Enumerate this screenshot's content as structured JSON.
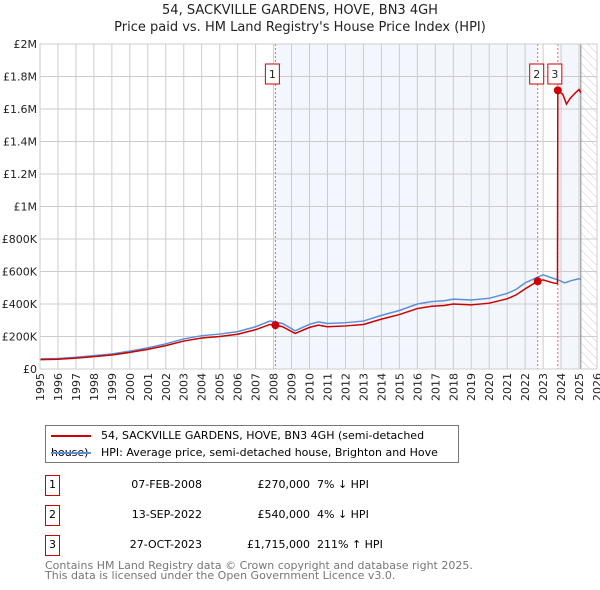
{
  "title": "54, SACKVILLE GARDENS, HOVE, BN3 4GH",
  "subtitle": "Price paid vs. HM Land Registry's House Price Index (HPI)",
  "chart_data": {
    "type": "line",
    "xlim": [
      1995,
      2026
    ],
    "ylim": [
      0,
      2000000
    ],
    "xticks": [
      "1995",
      "1996",
      "1997",
      "1998",
      "1999",
      "2000",
      "2001",
      "2002",
      "2003",
      "2004",
      "2005",
      "2006",
      "2007",
      "2008",
      "2009",
      "2010",
      "2011",
      "2012",
      "2013",
      "2014",
      "2015",
      "2016",
      "2017",
      "2018",
      "2019",
      "2020",
      "2021",
      "2022",
      "2023",
      "2024",
      "2025",
      "2026"
    ],
    "yticks": [
      {
        "v": 0,
        "l": "£0"
      },
      {
        "v": 200000,
        "l": "£200K"
      },
      {
        "v": 400000,
        "l": "£400K"
      },
      {
        "v": 600000,
        "l": "£600K"
      },
      {
        "v": 800000,
        "l": "£800K"
      },
      {
        "v": 1000000,
        "l": "£1M"
      },
      {
        "v": 1200000,
        "l": "£1.2M"
      },
      {
        "v": 1400000,
        "l": "£1.4M"
      },
      {
        "v": 1600000,
        "l": "£1.6M"
      },
      {
        "v": 1800000,
        "l": "£1.8M"
      },
      {
        "v": 2000000,
        "l": "£2M"
      }
    ],
    "series": [
      {
        "name": "54, SACKVILLE GARDENS, HOVE, BN3 4GH (semi-detached house)",
        "color": "#cc0000",
        "points": [
          [
            1995,
            58000
          ],
          [
            1996,
            60000
          ],
          [
            1997,
            67000
          ],
          [
            1998,
            76000
          ],
          [
            1999,
            86000
          ],
          [
            2000,
            102000
          ],
          [
            2001,
            121000
          ],
          [
            2002,
            144000
          ],
          [
            2003,
            172000
          ],
          [
            2004,
            191000
          ],
          [
            2005,
            200000
          ],
          [
            2006,
            214000
          ],
          [
            2007,
            242000
          ],
          [
            2007.8,
            274000
          ],
          [
            2008.1,
            270000
          ],
          [
            2008.5,
            260000
          ],
          [
            2009.2,
            219000
          ],
          [
            2010,
            256000
          ],
          [
            2010.5,
            270000
          ],
          [
            2011,
            260000
          ],
          [
            2012,
            265000
          ],
          [
            2013,
            274000
          ],
          [
            2014,
            307000
          ],
          [
            2015,
            335000
          ],
          [
            2016,
            372000
          ],
          [
            2016.8,
            386000
          ],
          [
            2017.5,
            391000
          ],
          [
            2018,
            400000
          ],
          [
            2019,
            395000
          ],
          [
            2020,
            405000
          ],
          [
            2021,
            432000
          ],
          [
            2021.5,
            456000
          ],
          [
            2022,
            493000
          ],
          [
            2022.7,
            540000
          ],
          [
            2023,
            548000
          ],
          [
            2023.5,
            532000
          ],
          [
            2023.8,
            525000
          ],
          [
            2023.82,
            1715000
          ],
          [
            2024.1,
            1690000
          ],
          [
            2024.3,
            1630000
          ],
          [
            2024.5,
            1665000
          ],
          [
            2024.8,
            1700000
          ],
          [
            2025,
            1720000
          ],
          [
            2025.1,
            1700000
          ]
        ]
      },
      {
        "name": "HPI: Average price, semi-detached house, Brighton and Hove",
        "color": "#5b8fd6",
        "points": [
          [
            1995,
            62000
          ],
          [
            1996,
            65000
          ],
          [
            1997,
            72000
          ],
          [
            1998,
            82000
          ],
          [
            1999,
            92000
          ],
          [
            2000,
            110000
          ],
          [
            2001,
            130000
          ],
          [
            2002,
            155000
          ],
          [
            2003,
            185000
          ],
          [
            2004,
            205000
          ],
          [
            2005,
            215000
          ],
          [
            2006,
            230000
          ],
          [
            2007,
            260000
          ],
          [
            2007.8,
            295000
          ],
          [
            2008.5,
            280000
          ],
          [
            2009.2,
            235000
          ],
          [
            2010,
            275000
          ],
          [
            2010.5,
            290000
          ],
          [
            2011,
            280000
          ],
          [
            2012,
            285000
          ],
          [
            2013,
            295000
          ],
          [
            2014,
            330000
          ],
          [
            2015,
            360000
          ],
          [
            2016,
            400000
          ],
          [
            2016.8,
            415000
          ],
          [
            2017.5,
            420000
          ],
          [
            2018,
            430000
          ],
          [
            2019,
            425000
          ],
          [
            2020,
            435000
          ],
          [
            2021,
            465000
          ],
          [
            2021.5,
            490000
          ],
          [
            2022,
            530000
          ],
          [
            2022.7,
            565000
          ],
          [
            2023,
            580000
          ],
          [
            2023.5,
            560000
          ],
          [
            2023.8,
            550000
          ],
          [
            2024.2,
            530000
          ],
          [
            2024.6,
            545000
          ],
          [
            2025,
            555000
          ],
          [
            2025.1,
            552000
          ]
        ]
      }
    ],
    "sales": [
      {
        "n": "1",
        "x": 2008.1,
        "y": 270000
      },
      {
        "n": "2",
        "x": 2022.7,
        "y": 540000
      },
      {
        "n": "3",
        "x": 2023.82,
        "y": 1715000
      }
    ],
    "forecast_from": 2025.1
  },
  "legend": {
    "property": "54, SACKVILLE GARDENS, HOVE, BN3 4GH (semi-detached house)",
    "hpi": "HPI: Average price, semi-detached house, Brighton and Hove"
  },
  "table": [
    {
      "n": "1",
      "date": "07-FEB-2008",
      "price": "£270,000",
      "hpi": "7% ↓ HPI"
    },
    {
      "n": "2",
      "date": "13-SEP-2022",
      "price": "£540,000",
      "hpi": "4% ↓ HPI"
    },
    {
      "n": "3",
      "date": "27-OCT-2023",
      "price": "£1,715,000",
      "hpi": "211% ↑ HPI"
    }
  ],
  "footer": {
    "line1": "Contains HM Land Registry data © Crown copyright and database right 2025.",
    "line2": "This data is licensed under the Open Government Licence v3.0."
  }
}
